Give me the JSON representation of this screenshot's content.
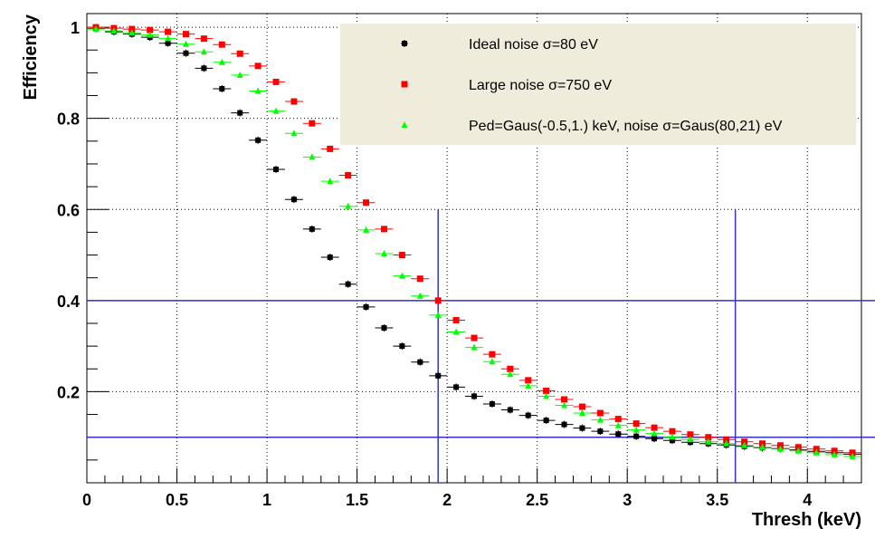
{
  "chart_data": {
    "type": "scatter",
    "xlabel": "Thresh (keV)",
    "ylabel": "Efficiency",
    "xlim": [
      0,
      4.3
    ],
    "ylim": [
      0,
      1.03
    ],
    "x_ticks": [
      "0",
      "0.5",
      "1",
      "1.5",
      "2",
      "2.5",
      "3",
      "3.5",
      "4"
    ],
    "y_ticks": [
      "0.2",
      "0.4",
      "0.6",
      "0.8",
      "1"
    ],
    "grid": true,
    "legend_position": "top-right",
    "bin_width": 0.1,
    "colors": {
      "ideal": "#000000",
      "large": "#ff0000",
      "gaus": "#00ff00",
      "lines": "#3333cc",
      "legend_bg": "#f0ecdc"
    },
    "x": [
      0.05,
      0.15,
      0.25,
      0.35,
      0.45,
      0.55,
      0.65,
      0.75,
      0.85,
      0.95,
      1.05,
      1.15,
      1.25,
      1.35,
      1.45,
      1.55,
      1.65,
      1.75,
      1.85,
      1.95,
      2.05,
      2.15,
      2.25,
      2.35,
      2.45,
      2.55,
      2.65,
      2.75,
      2.85,
      2.95,
      3.05,
      3.15,
      3.25,
      3.35,
      3.45,
      3.55,
      3.65,
      3.75,
      3.85,
      3.95,
      4.05,
      4.15,
      4.25
    ],
    "series": [
      {
        "name": "Ideal noise σ=80 eV",
        "marker": "star",
        "values": [
          0.997,
          0.99,
          0.985,
          0.978,
          0.965,
          0.943,
          0.91,
          0.865,
          0.812,
          0.752,
          0.688,
          0.622,
          0.557,
          0.495,
          0.436,
          0.386,
          0.34,
          0.3,
          0.265,
          0.235,
          0.21,
          0.19,
          0.173,
          0.16,
          0.148,
          0.137,
          0.128,
          0.12,
          0.113,
          0.107,
          0.102,
          0.097,
          0.093,
          0.089,
          0.086,
          0.083,
          0.08,
          0.077,
          0.075,
          0.072,
          0.069,
          0.066,
          0.063
        ]
      },
      {
        "name": "Large noise σ=750 eV",
        "marker": "square",
        "values": [
          1.0,
          0.998,
          0.996,
          0.994,
          0.99,
          0.985,
          0.975,
          0.962,
          0.942,
          0.915,
          0.88,
          0.837,
          0.789,
          0.733,
          0.675,
          0.615,
          0.557,
          0.5,
          0.448,
          0.4,
          0.357,
          0.318,
          0.282,
          0.25,
          0.225,
          0.202,
          0.183,
          0.167,
          0.153,
          0.14,
          0.13,
          0.121,
          0.113,
          0.106,
          0.1,
          0.095,
          0.09,
          0.086,
          0.082,
          0.078,
          0.074,
          0.07,
          0.066
        ]
      },
      {
        "name": "Ped=Gaus(-0.5,1.) keV, noise σ=Gaus(80,21) eV",
        "marker": "triangle",
        "values": [
          0.996,
          0.992,
          0.988,
          0.983,
          0.975,
          0.963,
          0.946,
          0.923,
          0.895,
          0.86,
          0.816,
          0.767,
          0.715,
          0.662,
          0.607,
          0.555,
          0.503,
          0.454,
          0.41,
          0.368,
          0.331,
          0.297,
          0.266,
          0.238,
          0.213,
          0.19,
          0.17,
          0.153,
          0.138,
          0.126,
          0.116,
          0.108,
          0.101,
          0.095,
          0.09,
          0.086,
          0.082,
          0.078,
          0.074,
          0.07,
          0.066,
          0.062,
          0.058
        ]
      }
    ],
    "reference_lines": [
      {
        "orientation": "vertical",
        "value": 1.95,
        "y_top": 0.6
      },
      {
        "orientation": "vertical",
        "value": 3.6,
        "y_top": 0.6
      },
      {
        "orientation": "horizontal",
        "value": 0.4
      },
      {
        "orientation": "horizontal",
        "value": 0.1
      }
    ]
  }
}
